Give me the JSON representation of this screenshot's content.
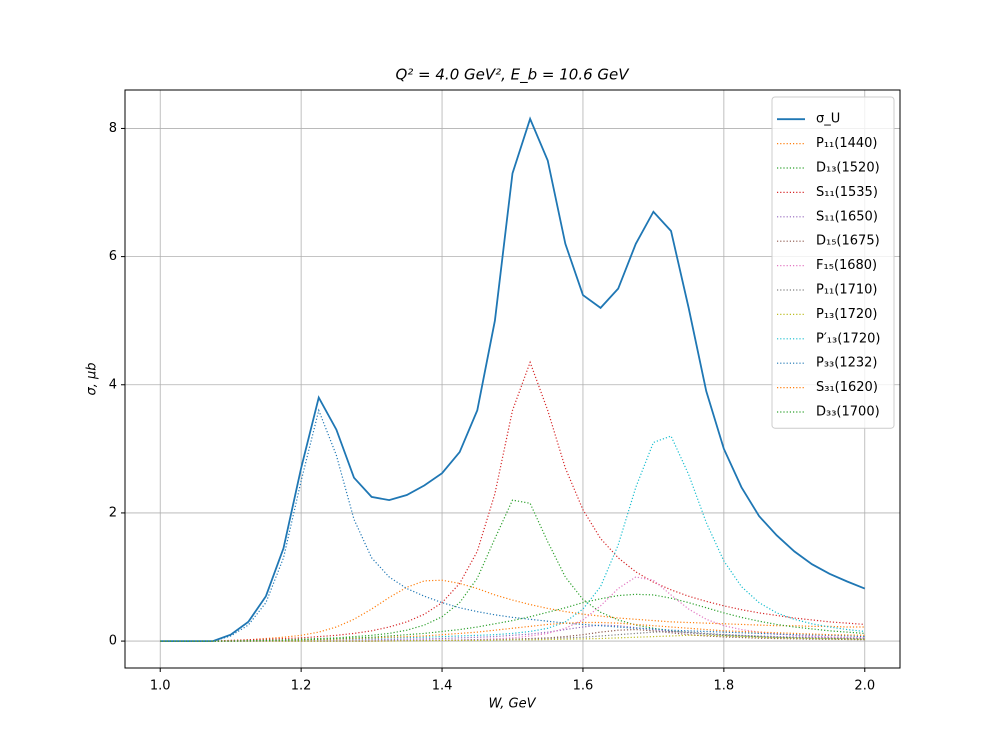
{
  "chart_data": {
    "type": "line",
    "title": "Q² = 4.0 GeV²,  E_b = 10.6 GeV",
    "x_label": "W, GeV",
    "y_label": "σ, μb",
    "xlim": [
      0.95,
      2.05
    ],
    "ylim": [
      -0.42,
      8.6
    ],
    "xticks": [
      {
        "value": 1.0,
        "label": "1.0"
      },
      1.2,
      1.4,
      1.6,
      1.8,
      {
        "value": 2.0,
        "label": "2.0"
      }
    ],
    "yticks": [
      0,
      2,
      4,
      6,
      8
    ],
    "grid": true,
    "legend": "upper right",
    "x": [
      1.0,
      1.025,
      1.05,
      1.075,
      1.1,
      1.125,
      1.15,
      1.175,
      1.2,
      1.225,
      1.25,
      1.275,
      1.3,
      1.325,
      1.35,
      1.375,
      1.4,
      1.425,
      1.45,
      1.475,
      1.5,
      1.525,
      1.55,
      1.575,
      1.6,
      1.625,
      1.65,
      1.675,
      1.7,
      1.725,
      1.75,
      1.775,
      1.8,
      1.825,
      1.85,
      1.875,
      1.9,
      1.925,
      1.95,
      1.975,
      2.0
    ],
    "series": [
      {
        "name": "σ_U",
        "color": "#1f77b4",
        "style": "solid",
        "values": [
          0,
          0,
          0,
          0,
          0.1,
          0.3,
          0.7,
          1.45,
          2.7,
          3.8,
          3.3,
          2.55,
          2.25,
          2.2,
          2.28,
          2.43,
          2.62,
          2.95,
          3.6,
          5.0,
          7.3,
          8.15,
          7.5,
          6.2,
          5.4,
          5.2,
          5.5,
          6.2,
          6.7,
          6.4,
          5.2,
          3.9,
          3.0,
          2.4,
          1.95,
          1.65,
          1.4,
          1.2,
          1.05,
          0.93,
          0.82
        ]
      },
      {
        "name": "P₁₁(1440)",
        "color": "#ff7f0e",
        "style": "dotted",
        "values": [
          0,
          0,
          0,
          0,
          0.01,
          0.02,
          0.04,
          0.06,
          0.09,
          0.14,
          0.22,
          0.34,
          0.5,
          0.68,
          0.84,
          0.94,
          0.95,
          0.9,
          0.82,
          0.72,
          0.64,
          0.57,
          0.51,
          0.46,
          0.42,
          0.39,
          0.36,
          0.34,
          0.32,
          0.3,
          0.29,
          0.28,
          0.27,
          0.26,
          0.25,
          0.24,
          0.24,
          0.23,
          0.23,
          0.22,
          0.22
        ]
      },
      {
        "name": "D₁₃(1520)",
        "color": "#2ca02c",
        "style": "dotted",
        "values": [
          0,
          0,
          0,
          0,
          0.005,
          0.01,
          0.015,
          0.02,
          0.03,
          0.04,
          0.05,
          0.07,
          0.09,
          0.12,
          0.17,
          0.25,
          0.38,
          0.6,
          0.98,
          1.6,
          2.2,
          2.15,
          1.55,
          1.0,
          0.65,
          0.45,
          0.33,
          0.25,
          0.2,
          0.16,
          0.13,
          0.11,
          0.09,
          0.08,
          0.07,
          0.06,
          0.055,
          0.05,
          0.045,
          0.04,
          0.035
        ]
      },
      {
        "name": "S₁₁(1535)",
        "color": "#d62728",
        "style": "dotted",
        "values": [
          0,
          0,
          0,
          0,
          0.01,
          0.02,
          0.03,
          0.04,
          0.05,
          0.07,
          0.09,
          0.12,
          0.16,
          0.22,
          0.3,
          0.42,
          0.6,
          0.9,
          1.4,
          2.3,
          3.6,
          4.35,
          3.6,
          2.7,
          2.05,
          1.6,
          1.3,
          1.08,
          0.92,
          0.8,
          0.7,
          0.62,
          0.55,
          0.49,
          0.44,
          0.4,
          0.36,
          0.33,
          0.3,
          0.28,
          0.26
        ]
      },
      {
        "name": "S₁₁(1650)",
        "color": "#9467bd",
        "style": "dotted",
        "values": [
          0,
          0,
          0,
          0,
          0,
          0,
          0,
          0.005,
          0.005,
          0.01,
          0.01,
          0.015,
          0.02,
          0.025,
          0.03,
          0.035,
          0.04,
          0.05,
          0.06,
          0.07,
          0.09,
          0.11,
          0.14,
          0.18,
          0.22,
          0.25,
          0.24,
          0.21,
          0.18,
          0.15,
          0.13,
          0.11,
          0.1,
          0.09,
          0.08,
          0.07,
          0.065,
          0.06,
          0.055,
          0.05,
          0.045
        ]
      },
      {
        "name": "D₁₅(1675)",
        "color": "#8c564b",
        "style": "dotted",
        "values": [
          0,
          0,
          0,
          0,
          0,
          0,
          0,
          0,
          0,
          0,
          0,
          0,
          0,
          0.005,
          0.005,
          0.01,
          0.01,
          0.015,
          0.02,
          0.025,
          0.03,
          0.04,
          0.05,
          0.07,
          0.1,
          0.14,
          0.17,
          0.18,
          0.16,
          0.13,
          0.1,
          0.08,
          0.065,
          0.055,
          0.045,
          0.04,
          0.035,
          0.03,
          0.028,
          0.025,
          0.022
        ]
      },
      {
        "name": "F₁₅(1680)",
        "color": "#e377c2",
        "style": "dotted",
        "values": [
          0,
          0,
          0,
          0,
          0,
          0,
          0,
          0,
          0.002,
          0.003,
          0.004,
          0.005,
          0.006,
          0.008,
          0.01,
          0.012,
          0.015,
          0.018,
          0.025,
          0.035,
          0.05,
          0.08,
          0.12,
          0.2,
          0.33,
          0.55,
          0.82,
          1.0,
          0.95,
          0.72,
          0.5,
          0.34,
          0.24,
          0.18,
          0.14,
          0.11,
          0.09,
          0.075,
          0.065,
          0.055,
          0.05
        ]
      },
      {
        "name": "P₁₁(1710)",
        "color": "#7f7f7f",
        "style": "dotted",
        "values": [
          0,
          0,
          0,
          0,
          0,
          0,
          0,
          0,
          0,
          0,
          0,
          0,
          0,
          0.005,
          0.005,
          0.01,
          0.01,
          0.015,
          0.02,
          0.02,
          0.025,
          0.03,
          0.04,
          0.05,
          0.06,
          0.08,
          0.1,
          0.12,
          0.14,
          0.15,
          0.14,
          0.12,
          0.1,
          0.085,
          0.07,
          0.06,
          0.05,
          0.045,
          0.04,
          0.035,
          0.03
        ]
      },
      {
        "name": "P₁₃(1720)",
        "color": "#bcbd22",
        "style": "dotted",
        "values": [
          0,
          0,
          0,
          0,
          0,
          0,
          0,
          0,
          0,
          0,
          0,
          0,
          0,
          0,
          0.005,
          0.005,
          0.01,
          0.01,
          0.01,
          0.015,
          0.02,
          0.02,
          0.025,
          0.03,
          0.035,
          0.04,
          0.05,
          0.06,
          0.07,
          0.08,
          0.09,
          0.09,
          0.08,
          0.07,
          0.06,
          0.05,
          0.045,
          0.04,
          0.035,
          0.03,
          0.025
        ]
      },
      {
        "name": "P′₁₃(1720)",
        "color": "#17becf",
        "style": "dotted",
        "values": [
          0,
          0,
          0,
          0,
          0,
          0.005,
          0.01,
          0.015,
          0.02,
          0.025,
          0.03,
          0.035,
          0.04,
          0.05,
          0.055,
          0.06,
          0.07,
          0.08,
          0.09,
          0.1,
          0.12,
          0.15,
          0.2,
          0.3,
          0.5,
          0.85,
          1.5,
          2.4,
          3.1,
          3.2,
          2.6,
          1.85,
          1.25,
          0.85,
          0.6,
          0.44,
          0.34,
          0.27,
          0.22,
          0.18,
          0.15
        ]
      },
      {
        "name": "P₃₃(1232)",
        "color": "#1f77b4",
        "style": "dotted",
        "values": [
          0,
          0,
          0,
          0,
          0.08,
          0.25,
          0.6,
          1.3,
          2.5,
          3.6,
          2.9,
          1.9,
          1.3,
          1.0,
          0.82,
          0.7,
          0.6,
          0.52,
          0.46,
          0.41,
          0.37,
          0.34,
          0.31,
          0.28,
          0.26,
          0.24,
          0.22,
          0.2,
          0.19,
          0.17,
          0.16,
          0.15,
          0.14,
          0.13,
          0.12,
          0.11,
          0.1,
          0.095,
          0.09,
          0.08,
          0.07
        ]
      },
      {
        "name": "S₃₁(1620)",
        "color": "#ff7f0e",
        "style": "dotted",
        "values": [
          0,
          0,
          0,
          0,
          0,
          0.005,
          0.01,
          0.015,
          0.02,
          0.025,
          0.03,
          0.04,
          0.05,
          0.06,
          0.07,
          0.08,
          0.1,
          0.12,
          0.14,
          0.17,
          0.2,
          0.23,
          0.26,
          0.28,
          0.29,
          0.29,
          0.28,
          0.26,
          0.24,
          0.22,
          0.2,
          0.18,
          0.16,
          0.15,
          0.14,
          0.13,
          0.12,
          0.11,
          0.1,
          0.095,
          0.09
        ]
      },
      {
        "name": "D₃₃(1700)",
        "color": "#2ca02c",
        "style": "dotted",
        "values": [
          0,
          0,
          0,
          0,
          0,
          0.005,
          0.01,
          0.015,
          0.02,
          0.03,
          0.04,
          0.05,
          0.06,
          0.08,
          0.1,
          0.12,
          0.15,
          0.18,
          0.22,
          0.27,
          0.32,
          0.38,
          0.45,
          0.52,
          0.6,
          0.66,
          0.71,
          0.73,
          0.72,
          0.67,
          0.6,
          0.52,
          0.44,
          0.37,
          0.31,
          0.26,
          0.22,
          0.19,
          0.16,
          0.14,
          0.12
        ]
      }
    ]
  }
}
